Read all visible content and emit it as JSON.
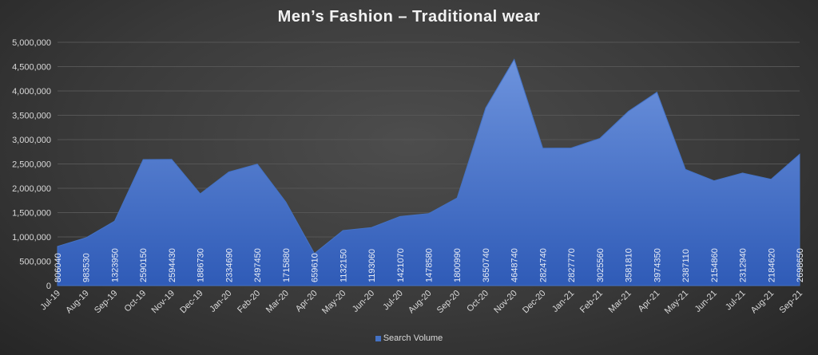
{
  "chart_data": {
    "type": "area",
    "title": "Men’s Fashion – Traditional wear",
    "categories": [
      "Jul-19",
      "Aug-19",
      "Sep-19",
      "Oct-19",
      "Nov-19",
      "Dec-19",
      "Jan-20",
      "Feb-20",
      "Mar-20",
      "Apr-20",
      "May-20",
      "Jun-20",
      "Jul-20",
      "Aug-20",
      "Sep-20",
      "Oct-20",
      "Nov-20",
      "Dec-20",
      "Jan-21",
      "Feb-21",
      "Mar-21",
      "Apr-21",
      "May-21",
      "Jun-21",
      "Jul-21",
      "Aug-21",
      "Sep-21"
    ],
    "series": [
      {
        "name": "Search Volume",
        "color": "#4472c4",
        "values": [
          806040,
          983530,
          1323950,
          2590150,
          2594430,
          1886730,
          2334690,
          2497450,
          1715880,
          659610,
          1132150,
          1193060,
          1421070,
          1478580,
          1800990,
          3650740,
          4648740,
          2824740,
          2827770,
          3025560,
          3581810,
          3974350,
          2387110,
          2154860,
          2312940,
          2184620,
          2698650
        ]
      }
    ],
    "ylim": [
      0,
      5000000
    ],
    "y_ticks": [
      "0",
      "500,000",
      "1,000,000",
      "1,500,000",
      "2,000,000",
      "2,500,000",
      "3,000,000",
      "3,500,000",
      "4,000,000",
      "4,500,000",
      "5,000,000"
    ],
    "grid": true,
    "legend_position": "bottom"
  }
}
